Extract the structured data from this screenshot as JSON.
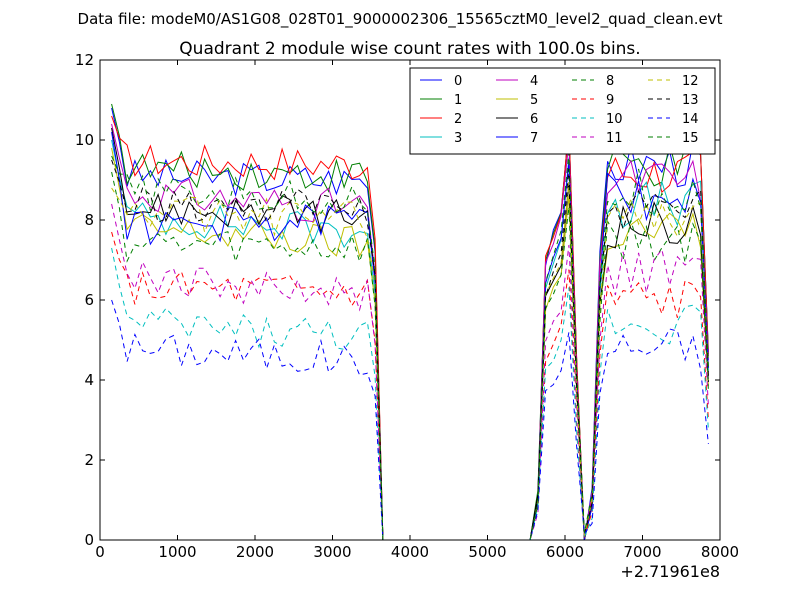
{
  "figure": {
    "suptitle": "Data file: modeM0/AS1G08_028T01_9000002306_15565cztM0_level2_quad_clean.evt"
  },
  "chart_data": {
    "type": "line",
    "title": "Quadrant 2 module wise count rates with 100.0s bins.",
    "xlabel": "",
    "ylabel": "",
    "offset_label": "+2.71961e8",
    "xlim": [
      0,
      8000
    ],
    "ylim": [
      0,
      12
    ],
    "x_ticks": [
      "0",
      "1000",
      "2000",
      "3000",
      "4000",
      "5000",
      "6000",
      "7000",
      "8000"
    ],
    "y_ticks": [
      "0",
      "2",
      "4",
      "6",
      "8",
      "10",
      "12"
    ],
    "legend_position": "top-right",
    "grid": false,
    "segments": [
      {
        "t_start": 150,
        "t_end": 3450,
        "step": 100
      },
      {
        "t_start": 3550,
        "t_end": 3550,
        "step": 100
      },
      {
        "t_start": 3650,
        "t_end": 5650,
        "step": 100
      },
      {
        "t_start": 5750,
        "t_end": 6450,
        "step": 100
      },
      {
        "t_start": 6550,
        "t_end": 7850,
        "step": 100
      }
    ],
    "series": [
      {
        "name": "0",
        "color": "#0000ff",
        "dash": "solid",
        "a": [
          10.8,
          9.1,
          9.0
        ],
        "b": 9.4
      },
      {
        "name": "1",
        "color": "#007f00",
        "dash": "solid",
        "a": [
          10.9,
          9.3,
          9.1
        ],
        "b": 9.3
      },
      {
        "name": "2",
        "color": "#ff0000",
        "dash": "solid",
        "a": [
          10.6,
          9.5,
          9.4
        ],
        "b": 9.2
      },
      {
        "name": "3",
        "color": "#00bfbf",
        "dash": "solid",
        "a": [
          10.0,
          8.1,
          7.7
        ],
        "b": 8.4
      },
      {
        "name": "4",
        "color": "#bf00bf",
        "dash": "solid",
        "a": [
          10.4,
          8.7,
          8.3
        ],
        "b": 9.0
      },
      {
        "name": "5",
        "color": "#bfbf00",
        "dash": "solid",
        "a": [
          9.8,
          7.8,
          7.4
        ],
        "b": 7.7
      },
      {
        "name": "6",
        "color": "#000000",
        "dash": "solid",
        "a": [
          10.3,
          8.3,
          8.1
        ],
        "b": 7.9
      },
      {
        "name": "7",
        "color": "#0000ff",
        "dash": "solid",
        "a": [
          10.2,
          7.8,
          8.0
        ],
        "b": 8.6
      },
      {
        "name": "8",
        "color": "#007f00",
        "dash": "dashed",
        "a": [
          9.2,
          7.4,
          7.3
        ],
        "b": 7.5
      },
      {
        "name": "9",
        "color": "#ff0000",
        "dash": "dashed",
        "a": [
          7.7,
          6.3,
          6.2
        ],
        "b": 6.0
      },
      {
        "name": "10",
        "color": "#00bfbf",
        "dash": "dashed",
        "a": [
          7.3,
          5.4,
          5.1
        ],
        "b": 5.5
      },
      {
        "name": "11",
        "color": "#bf00bf",
        "dash": "dashed",
        "a": [
          8.4,
          6.6,
          6.1
        ],
        "b": 6.7
      },
      {
        "name": "12",
        "color": "#bfbf00",
        "dash": "dashed",
        "a": [
          8.8,
          8.2,
          8.0
        ],
        "b": 8.0
      },
      {
        "name": "13",
        "color": "#000000",
        "dash": "dashed",
        "a": [
          9.5,
          8.4,
          8.3
        ],
        "b": 8.2
      },
      {
        "name": "14",
        "color": "#0000ff",
        "dash": "dashed",
        "a": [
          6.0,
          4.8,
          4.5
        ],
        "b": 4.8
      },
      {
        "name": "15",
        "color": "#007f00",
        "dash": "dashed",
        "a": [
          9.6,
          8.7,
          8.5
        ],
        "b": 8.7
      }
    ]
  }
}
